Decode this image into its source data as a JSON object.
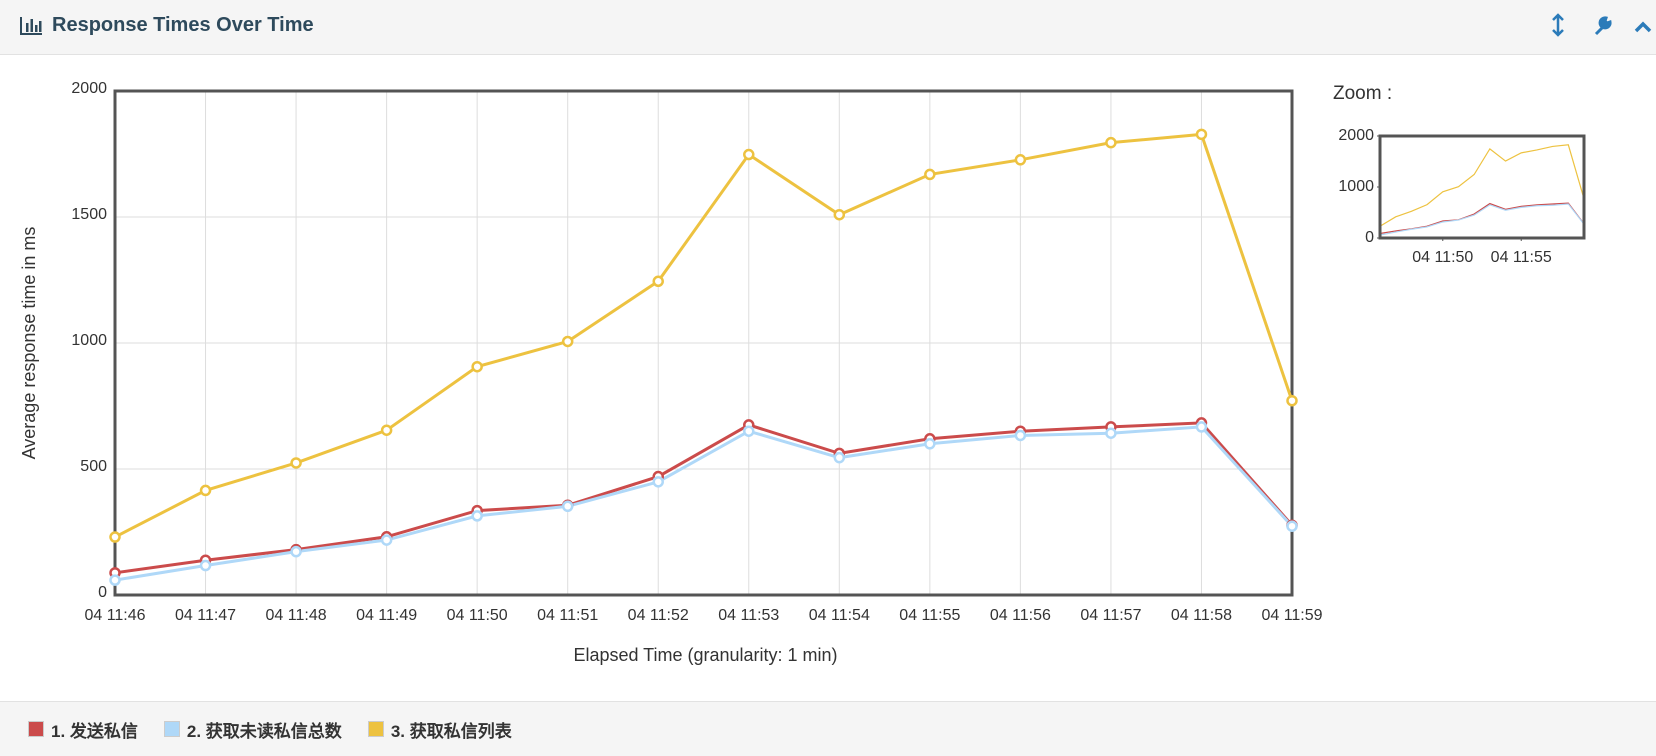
{
  "header": {
    "title": "Response Times Over Time"
  },
  "chart_data": [
    {
      "type": "line",
      "x_label": "Elapsed Time (granularity: 1 min)",
      "y_label": "Average response time in ms",
      "categories": [
        "04 11:46",
        "04 11:47",
        "04 11:48",
        "04 11:49",
        "04 11:50",
        "04 11:51",
        "04 11:52",
        "04 11:53",
        "04 11:54",
        "04 11:55",
        "04 11:56",
        "04 11:57",
        "04 11:58",
        "04 11:59"
      ],
      "ylim": [
        0,
        2000
      ],
      "yticks": [
        0,
        500,
        1000,
        1500,
        2000
      ],
      "grid": true,
      "series": [
        {
          "name": "1. 发送私信",
          "color": "#cb4b4b",
          "values": [
            88,
            138,
            180,
            231,
            335,
            356,
            470,
            675,
            562,
            620,
            650,
            667,
            683,
            277
          ]
        },
        {
          "name": "2. 获取未读私信总数",
          "color": "#afd8f8",
          "values": [
            59,
            117,
            172,
            218,
            314,
            352,
            449,
            650,
            545,
            600,
            633,
            642,
            667,
            273
          ]
        },
        {
          "name": "3. 获取私信列表",
          "color": "#edc240",
          "values": [
            230,
            415,
            524,
            654,
            906,
            1006,
            1245,
            1748,
            1509,
            1669,
            1727,
            1795,
            1828,
            771
          ]
        }
      ]
    },
    {
      "type": "zoom",
      "title": "Zoom :",
      "ylim": [
        0,
        2000
      ],
      "yticks": [
        0,
        1000,
        2000
      ],
      "xlim": [
        0,
        13
      ],
      "xticks": [
        {
          "value": 4,
          "label": "04 11:50"
        },
        {
          "value": 9,
          "label": "04 11:55"
        }
      ]
    }
  ]
}
